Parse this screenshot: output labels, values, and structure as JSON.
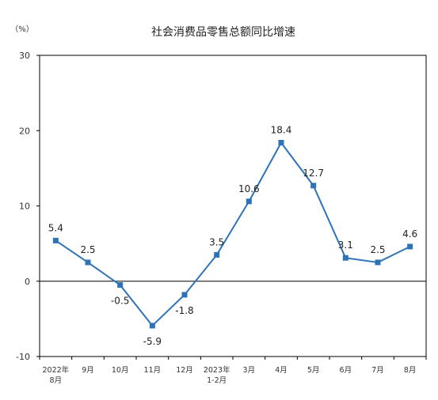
{
  "chart_data": {
    "type": "line",
    "title": "社会消费品零售总额同比增速",
    "unit_label": "（%）",
    "categories": [
      [
        "2022年",
        "8月"
      ],
      [
        "9月"
      ],
      [
        "10月"
      ],
      [
        "11月"
      ],
      [
        "12月"
      ],
      [
        "2023年",
        "1-2月"
      ],
      [
        "3月"
      ],
      [
        "4月"
      ],
      [
        "5月"
      ],
      [
        "6月"
      ],
      [
        "7月"
      ],
      [
        "8月"
      ]
    ],
    "series": [
      {
        "values": [
          5.4,
          2.5,
          -0.5,
          -5.9,
          -1.8,
          3.5,
          10.6,
          18.4,
          12.7,
          3.1,
          2.5,
          4.6
        ]
      }
    ],
    "data_labels": [
      "5.4",
      "2.5",
      "-0.5",
      "-5.9",
      "-1.8",
      "3.5",
      "10.6",
      "18.4",
      "12.7",
      "3.1",
      "2.5",
      "4.6"
    ],
    "yticks": [
      "30",
      "20",
      "10",
      "0",
      "-10"
    ],
    "ytick_values": [
      30,
      20,
      10,
      0,
      -10
    ],
    "ylim": [
      -10,
      30
    ],
    "grid": false,
    "line_color": "#2e73b8",
    "marker_color": "#2e73b8"
  }
}
